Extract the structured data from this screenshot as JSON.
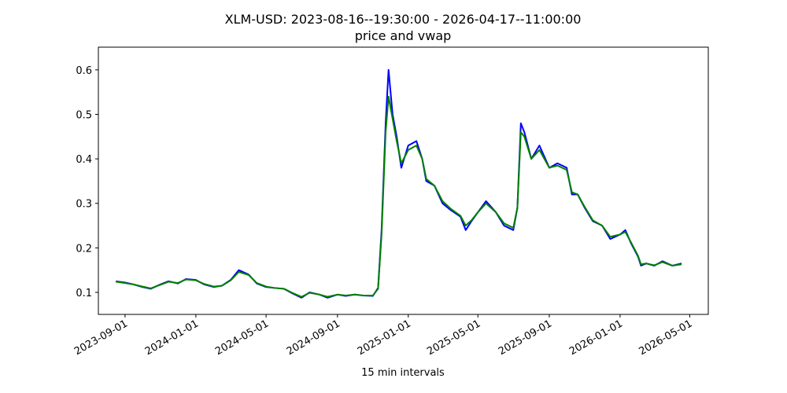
{
  "chart_data": {
    "type": "line",
    "title": "XLM-USD: 2023-08-16--19:30:00 - 2026-04-17--11:00:00",
    "subtitle": "price and vwap",
    "xlabel": "15 min intervals",
    "x": [
      "2023-08-16",
      "2023-09-01",
      "2023-09-15",
      "2023-10-01",
      "2023-10-15",
      "2023-11-01",
      "2023-11-15",
      "2023-12-01",
      "2023-12-15",
      "2024-01-01",
      "2024-01-15",
      "2024-02-01",
      "2024-02-15",
      "2024-03-01",
      "2024-03-15",
      "2024-04-01",
      "2024-04-15",
      "2024-05-01",
      "2024-05-15",
      "2024-06-01",
      "2024-06-15",
      "2024-07-01",
      "2024-07-15",
      "2024-08-01",
      "2024-08-15",
      "2024-09-01",
      "2024-09-15",
      "2024-10-01",
      "2024-10-15",
      "2024-11-01",
      "2024-11-10",
      "2024-11-16",
      "2024-11-23",
      "2024-11-28",
      "2024-12-05",
      "2024-12-12",
      "2024-12-20",
      "2025-01-01",
      "2025-01-15",
      "2025-01-25",
      "2025-02-01",
      "2025-02-15",
      "2025-03-01",
      "2025-03-15",
      "2025-04-01",
      "2025-04-10",
      "2025-04-20",
      "2025-05-01",
      "2025-05-15",
      "2025-06-01",
      "2025-06-15",
      "2025-07-01",
      "2025-07-08",
      "2025-07-14",
      "2025-07-20",
      "2025-08-01",
      "2025-08-15",
      "2025-09-01",
      "2025-09-15",
      "2025-10-01",
      "2025-10-10",
      "2025-10-20",
      "2025-11-01",
      "2025-11-15",
      "2025-12-01",
      "2025-12-15",
      "2026-01-01",
      "2026-01-10",
      "2026-01-20",
      "2026-02-01",
      "2026-02-06",
      "2026-02-15",
      "2026-03-01",
      "2026-03-15",
      "2026-04-01",
      "2026-04-17"
    ],
    "series": [
      {
        "name": "price",
        "color": "#0000ff",
        "values": [
          0.125,
          0.122,
          0.118,
          0.112,
          0.108,
          0.118,
          0.125,
          0.12,
          0.13,
          0.128,
          0.118,
          0.112,
          0.115,
          0.128,
          0.15,
          0.14,
          0.12,
          0.112,
          0.11,
          0.108,
          0.098,
          0.088,
          0.1,
          0.095,
          0.088,
          0.095,
          0.092,
          0.095,
          0.093,
          0.092,
          0.11,
          0.24,
          0.48,
          0.6,
          0.5,
          0.45,
          0.38,
          0.43,
          0.44,
          0.4,
          0.35,
          0.34,
          0.3,
          0.285,
          0.27,
          0.24,
          0.26,
          0.28,
          0.305,
          0.28,
          0.25,
          0.24,
          0.29,
          0.48,
          0.46,
          0.4,
          0.43,
          0.38,
          0.39,
          0.38,
          0.32,
          0.32,
          0.29,
          0.26,
          0.25,
          0.22,
          0.23,
          0.24,
          0.21,
          0.18,
          0.16,
          0.165,
          0.16,
          0.17,
          0.16,
          0.165
        ]
      },
      {
        "name": "vwap",
        "color": "#008000",
        "values": [
          0.124,
          0.121,
          0.118,
          0.113,
          0.109,
          0.117,
          0.124,
          0.121,
          0.129,
          0.127,
          0.119,
          0.113,
          0.115,
          0.127,
          0.146,
          0.139,
          0.121,
          0.113,
          0.11,
          0.108,
          0.099,
          0.09,
          0.099,
          0.095,
          0.09,
          0.095,
          0.093,
          0.095,
          0.093,
          0.093,
          0.108,
          0.23,
          0.46,
          0.54,
          0.49,
          0.44,
          0.39,
          0.42,
          0.43,
          0.4,
          0.355,
          0.34,
          0.305,
          0.288,
          0.272,
          0.25,
          0.262,
          0.28,
          0.3,
          0.28,
          0.255,
          0.245,
          0.29,
          0.46,
          0.45,
          0.4,
          0.42,
          0.38,
          0.385,
          0.375,
          0.325,
          0.32,
          0.292,
          0.262,
          0.25,
          0.225,
          0.23,
          0.236,
          0.212,
          0.182,
          0.163,
          0.165,
          0.161,
          0.168,
          0.16,
          0.163
        ]
      }
    ],
    "xlim": [
      "2023-07-17",
      "2026-06-02"
    ],
    "xticks": [
      "2023-09-01",
      "2024-01-01",
      "2024-05-01",
      "2024-09-01",
      "2025-01-01",
      "2025-05-01",
      "2025-09-01",
      "2026-01-01",
      "2026-05-01"
    ],
    "ylim": [
      0.0505,
      0.651
    ],
    "yticks": [
      0.1,
      0.2,
      0.3,
      0.4,
      0.5,
      0.6
    ]
  }
}
